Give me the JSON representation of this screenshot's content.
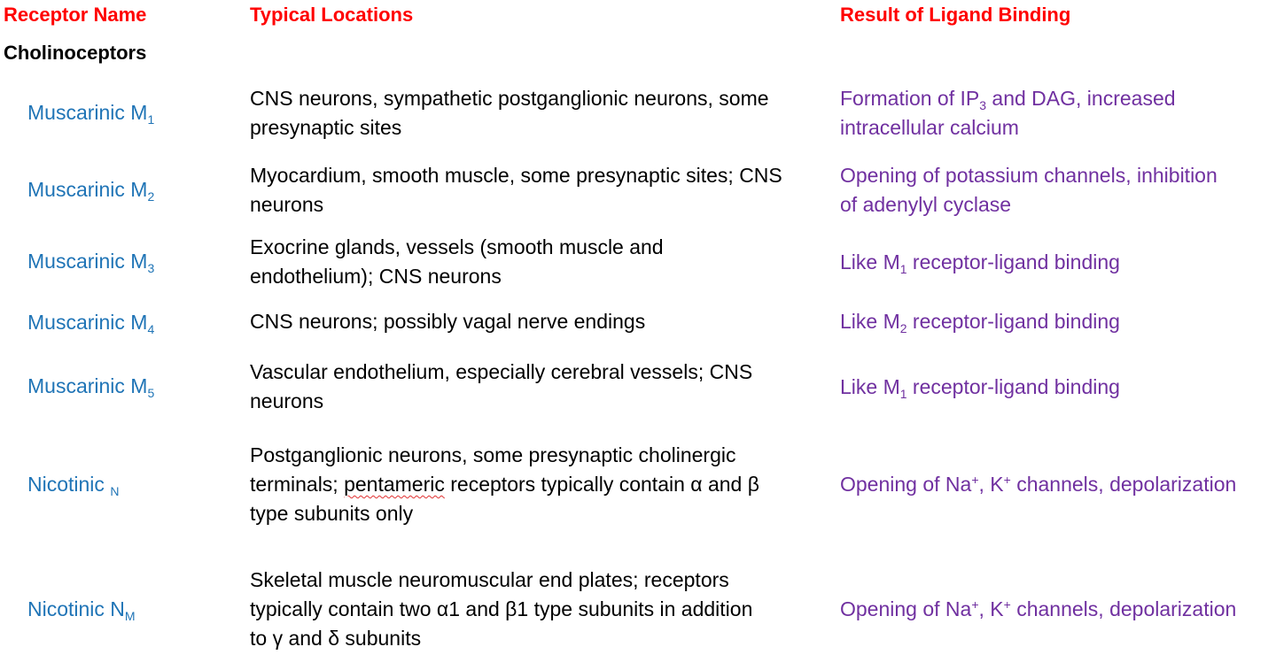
{
  "headers": {
    "receptor_name": "Receptor Name",
    "typical_locations": "Typical Locations",
    "result": "Result of Ligand Binding"
  },
  "group": "Cholinoceptors",
  "rows": [
    {
      "name": "Muscarinic M",
      "name_sub": "1",
      "loc_lines": [
        "CNS neurons, sympathetic postganglionic neurons, some",
        "presynaptic sites"
      ],
      "res_line1_a": "Formation of IP",
      "res_line1_sub": "3",
      "res_line1_b": " and DAG, increased",
      "res_line2": "intracellular calcium"
    },
    {
      "name": "Muscarinic M",
      "name_sub": "2",
      "loc_lines": [
        "Myocardium, smooth muscle, some presynaptic sites; CNS",
        "neurons"
      ],
      "res_lines": [
        "Opening of potassium channels, inhibition",
        "of adenylyl cyclase"
      ]
    },
    {
      "name": "Muscarinic M",
      "name_sub": "3",
      "loc_lines": [
        "Exocrine glands, vessels (smooth muscle and",
        "endothelium); CNS neurons"
      ],
      "res_a": "Like M",
      "res_sub": "1",
      "res_b": " receptor-ligand binding"
    },
    {
      "name": "Muscarinic M",
      "name_sub": "4",
      "loc_lines": [
        "CNS neurons; possibly vagal nerve endings"
      ],
      "res_a": "Like M",
      "res_sub": "2",
      "res_b": " receptor-ligand binding"
    },
    {
      "name": "Muscarinic M",
      "name_sub": "5",
      "loc_lines": [
        "Vascular endothelium, especially cerebral vessels; CNS",
        "neurons"
      ],
      "res_a": "Like M",
      "res_sub": "1",
      "res_b": " receptor-ligand binding"
    },
    {
      "name": "Nicotinic ",
      "name_sub": "N",
      "loc_line1": "Postganglionic neurons, some presynaptic cholinergic",
      "loc_line2_a": "terminals; ",
      "loc_line2_flagged": "pentameric",
      "loc_line2_b": " receptors typically contain α and β",
      "loc_line3": "type subunits only",
      "res_a": "Opening of Na",
      "res_sup1": "+",
      "res_b": ", K",
      "res_sup2": "+",
      "res_c": " channels, depolarization"
    },
    {
      "name": "Nicotinic N",
      "name_sub": "M",
      "loc_lines": [
        "Skeletal muscle neuromuscular end plates; receptors",
        "typically contain two α1 and β1 type subunits in addition",
        "to γ and δ subunits"
      ],
      "res_a": "Opening of Na",
      "res_sup1": "+",
      "res_b": ", K",
      "res_sup2": "+",
      "res_c": " channels, depolarization"
    }
  ]
}
